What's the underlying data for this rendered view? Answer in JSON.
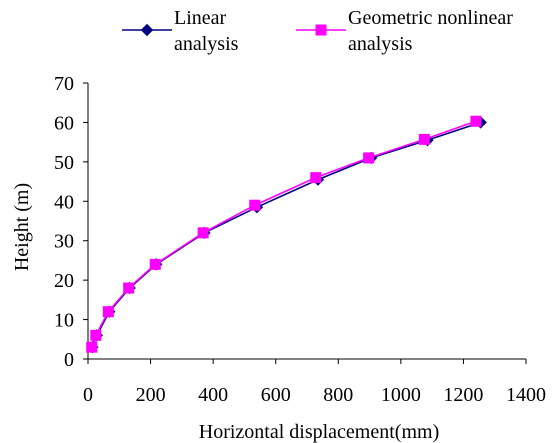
{
  "chart_data": {
    "type": "line",
    "title": "",
    "xlabel": "Horizontal displacement(mm)",
    "ylabel": "Height (m)",
    "xlim": [
      0,
      1400
    ],
    "ylim": [
      0,
      70
    ],
    "xticks": [
      0,
      200,
      400,
      600,
      800,
      1000,
      1200,
      1400
    ],
    "yticks": [
      0,
      10,
      20,
      30,
      40,
      50,
      60,
      70
    ],
    "xtick_labels": [
      "0",
      "200",
      "400",
      "600",
      "800",
      "1000",
      "1200",
      "1400"
    ],
    "ytick_labels": [
      "0",
      "10",
      "20",
      "30",
      "40",
      "50",
      "60",
      "70"
    ],
    "grid": false,
    "legend_position": "top",
    "series": [
      {
        "name_lines": [
          "Linear",
          "analysis"
        ],
        "color": "#000080",
        "marker": "diamond",
        "points": [
          {
            "x": 14,
            "y": 3
          },
          {
            "x": 28,
            "y": 6
          },
          {
            "x": 68,
            "y": 12
          },
          {
            "x": 133,
            "y": 18
          },
          {
            "x": 218,
            "y": 24
          },
          {
            "x": 372,
            "y": 32
          },
          {
            "x": 540,
            "y": 38.5
          },
          {
            "x": 735,
            "y": 45.5
          },
          {
            "x": 905,
            "y": 51
          },
          {
            "x": 1085,
            "y": 55.5
          },
          {
            "x": 1255,
            "y": 60
          }
        ]
      },
      {
        "name_lines": [
          "Geometric nonlinear",
          "analysis"
        ],
        "color": "#ff00ff",
        "marker": "square",
        "points": [
          {
            "x": 12,
            "y": 3
          },
          {
            "x": 25,
            "y": 6
          },
          {
            "x": 65,
            "y": 12
          },
          {
            "x": 130,
            "y": 18
          },
          {
            "x": 215,
            "y": 24
          },
          {
            "x": 368,
            "y": 32
          },
          {
            "x": 533,
            "y": 39
          },
          {
            "x": 728,
            "y": 46
          },
          {
            "x": 897,
            "y": 51
          },
          {
            "x": 1075,
            "y": 55.7
          },
          {
            "x": 1240,
            "y": 60.3
          }
        ]
      }
    ]
  }
}
